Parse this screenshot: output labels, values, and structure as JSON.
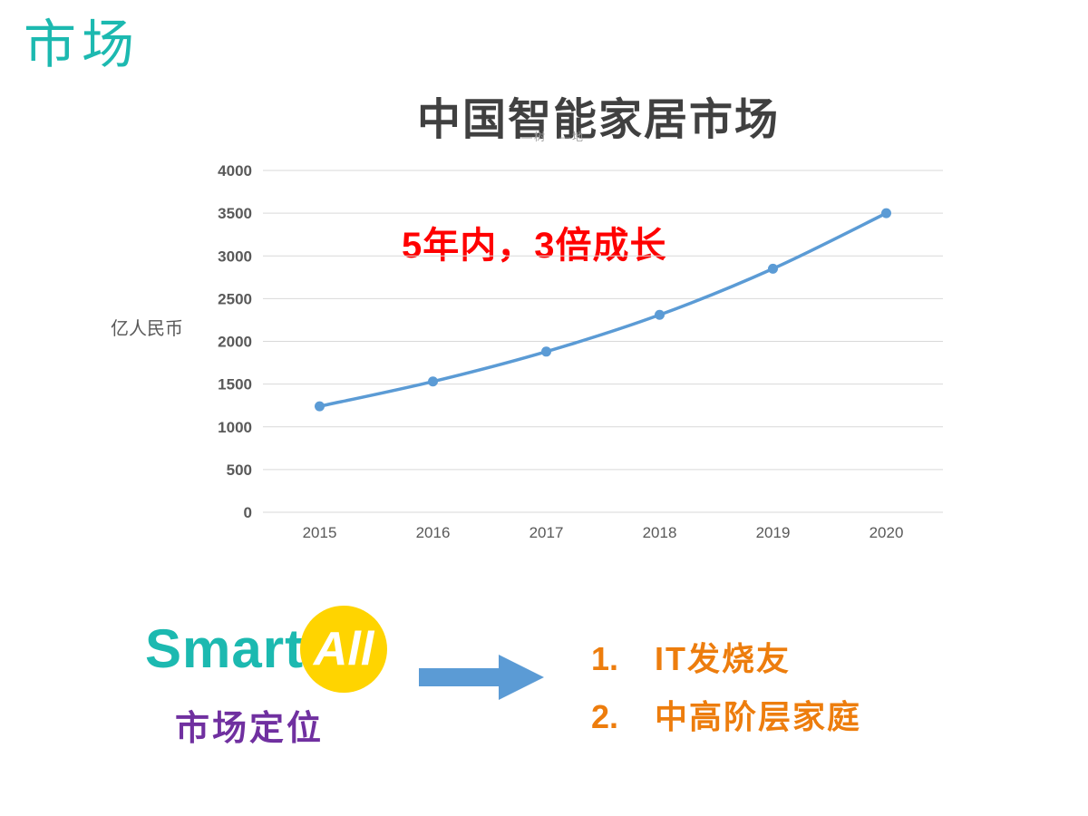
{
  "page": {
    "heading": "市场"
  },
  "chart": {
    "title": "中国智能家居市场",
    "legend_note": "—树　—地",
    "annotation": "5年内，3倍成长",
    "y_axis_unit": "亿人民币"
  },
  "chart_data": {
    "type": "line",
    "title": "中国智能家居市场",
    "categories": [
      "2015",
      "2016",
      "2017",
      "2018",
      "2019",
      "2020"
    ],
    "values": [
      1240,
      1530,
      1880,
      2310,
      2850,
      3500
    ],
    "xlabel": "",
    "ylabel": "亿人民币",
    "ylim": [
      0,
      4000
    ],
    "ytick_step": 500,
    "grid": true,
    "legend_position": "none",
    "line_color": "#5b9bd5",
    "annotation": "5年内，3倍成长"
  },
  "footer": {
    "logo": {
      "smart": "Smart",
      "all": "All"
    },
    "positioning_label": "市场定位",
    "audience": [
      {
        "num": "1.",
        "label": "IT发烧友"
      },
      {
        "num": "2.",
        "label": "中高阶层家庭"
      }
    ]
  },
  "colors": {
    "teal": "#1cb9b0",
    "purple": "#7030a0",
    "orange": "#ed7d0d",
    "red": "#ff0000",
    "chart_line": "#5b9bd5",
    "logo_yellow": "#ffd400",
    "gridline": "#d9d9d9",
    "axis_text": "#595959",
    "title_text": "#404040"
  }
}
